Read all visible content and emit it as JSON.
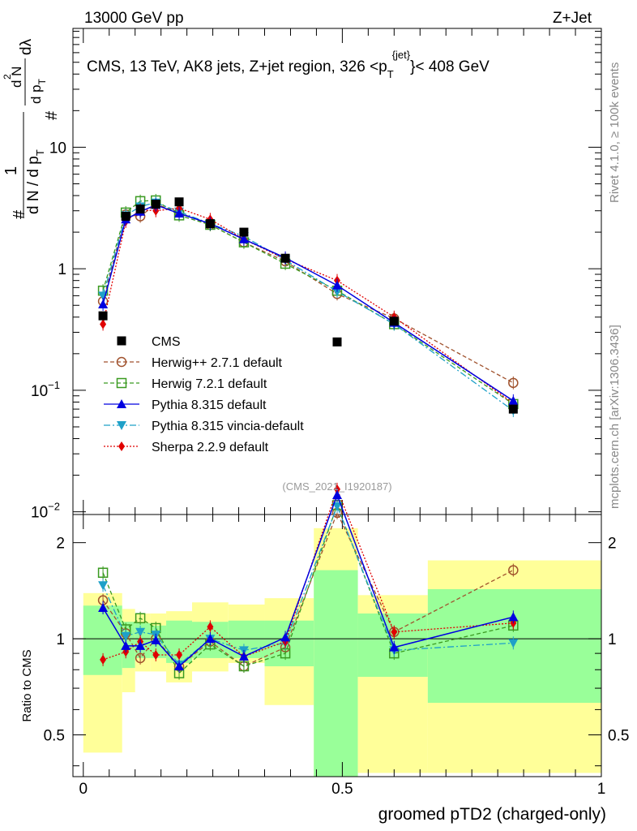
{
  "header": {
    "left": "13000 GeV pp",
    "right": "Z+Jet"
  },
  "plot_title": {
    "main": "CMS, 13 TeV, AK8 jets, Z+jet region, 326 <p",
    "sub": "T",
    "sup": "{jet}",
    "tail": "}< 408 GeV"
  },
  "side_labels": {
    "rivet": "Rivet 4.1.0, ≥ 100k events",
    "mcplots": "mcplots.cern.ch [arXiv:1306.3436]"
  },
  "watermark": "(CMS_2021_I1920187)",
  "ylabel_main": {
    "hash": "#",
    "one": "1",
    "den": "d N / d p",
    "den_sub": "T",
    "num_hash": "#",
    "num": "d N",
    "num_sup": "2",
    "num_den": "d p",
    "num_den_sub": "T",
    "dl": "dλ"
  },
  "ylabel_ratio": "Ratio to CMS",
  "xlabel": "groomed pTD2 (charged-only)",
  "main_ticks": [
    {
      "value": 10,
      "label": "10",
      "exp": ""
    },
    {
      "value": 1,
      "label": "1",
      "exp": ""
    },
    {
      "value": 0.1,
      "label": "10",
      "exp": "−1"
    },
    {
      "value": 0.01,
      "label": "10",
      "exp": "−2"
    }
  ],
  "ratio_ticks": [
    {
      "value": 2,
      "label": "2"
    },
    {
      "value": 1,
      "label": "1"
    },
    {
      "value": 0.5,
      "label": "0.5"
    }
  ],
  "x_ticks": [
    {
      "value": 0,
      "label": "0"
    },
    {
      "value": 0.5,
      "label": "0.5"
    },
    {
      "value": 1,
      "label": "1"
    }
  ],
  "colors": {
    "herwigpp": "#a0522d",
    "herwig7": "#3a9a20",
    "pythia": "#0000e0",
    "vincia": "#1ea0c8",
    "sherpa": "#e00000",
    "band_yellow": "#ffff99",
    "band_green": "#99ff99"
  },
  "chart_data": [
    {
      "type": "line",
      "panel": "main",
      "y_scale": "log",
      "xlim": [
        -0.02,
        1.0
      ],
      "ylim": [
        0.0095,
        95
      ],
      "x": [
        0.038,
        0.082,
        0.11,
        0.14,
        0.185,
        0.245,
        0.31,
        0.39,
        0.49,
        0.6,
        0.83
      ],
      "series": [
        {
          "name": "CMS",
          "key": "cms",
          "values": [
            0.41,
            2.7,
            3.1,
            3.4,
            3.55,
            2.35,
            2.0,
            1.22,
            0.25,
            0.37,
            0.07
          ]
        },
        {
          "name": "Herwig++ 2.7.1 default",
          "key": "herwigpp",
          "values": [
            0.54,
            2.8,
            2.7,
            3.4,
            2.9,
            2.3,
            1.65,
            1.15,
            0.62,
            0.39,
            0.115
          ]
        },
        {
          "name": "Herwig 7.2.1 default",
          "key": "herwig7",
          "values": [
            0.66,
            2.9,
            3.6,
            3.65,
            2.75,
            2.3,
            1.65,
            1.1,
            0.66,
            0.35,
            0.077
          ]
        },
        {
          "name": "Pythia 8.315 default",
          "key": "pythia",
          "values": [
            0.51,
            2.55,
            2.95,
            3.35,
            2.85,
            2.35,
            1.75,
            1.23,
            0.73,
            0.36,
            0.082
          ]
        },
        {
          "name": "Pythia 8.315 vincia-default",
          "key": "vincia",
          "values": [
            0.6,
            2.75,
            3.25,
            3.5,
            2.95,
            2.35,
            1.85,
            1.18,
            0.65,
            0.35,
            0.068
          ]
        },
        {
          "name": "Sherpa 2.2.9 default",
          "key": "sherpa",
          "values": [
            0.35,
            2.45,
            3.05,
            3.0,
            3.15,
            2.55,
            1.75,
            1.2,
            0.8,
            0.4,
            0.078
          ]
        }
      ]
    },
    {
      "type": "line",
      "panel": "ratio",
      "ylabel": "Ratio to CMS",
      "xlabel": "groomed pTD2 (charged-only)",
      "y_scale": "log",
      "xlim": [
        -0.02,
        1.0
      ],
      "ylim": [
        0.37,
        2.45
      ],
      "x": [
        0.038,
        0.082,
        0.11,
        0.14,
        0.185,
        0.245,
        0.31,
        0.39,
        0.49,
        0.6,
        0.83
      ],
      "bins": [
        {
          "lo": 0.0,
          "hi": 0.075,
          "yel": [
            0.44,
            1.39
          ],
          "grn": [
            0.77,
            1.27
          ]
        },
        {
          "lo": 0.075,
          "hi": 0.1,
          "yel": [
            0.68,
            1.24
          ],
          "grn": [
            0.81,
            1.13
          ]
        },
        {
          "lo": 0.1,
          "hi": 0.13,
          "yel": [
            0.79,
            1.2
          ],
          "grn": [
            0.87,
            1.12
          ]
        },
        {
          "lo": 0.13,
          "hi": 0.16,
          "yel": [
            0.79,
            1.2
          ],
          "grn": [
            0.87,
            1.1
          ]
        },
        {
          "lo": 0.16,
          "hi": 0.21,
          "yel": [
            0.73,
            1.22
          ],
          "grn": [
            0.84,
            1.14
          ]
        },
        {
          "lo": 0.21,
          "hi": 0.28,
          "yel": [
            0.79,
            1.3
          ],
          "grn": [
            0.87,
            1.13
          ]
        },
        {
          "lo": 0.28,
          "hi": 0.35,
          "yel": [
            0.84,
            1.28
          ],
          "grn": [
            0.87,
            1.14
          ]
        },
        {
          "lo": 0.35,
          "hi": 0.445,
          "yel": [
            0.62,
            1.34
          ],
          "grn": [
            0.82,
            1.14
          ]
        },
        {
          "lo": 0.445,
          "hi": 0.53,
          "yel": [
            0.35,
            2.22
          ],
          "grn": [
            0.35,
            1.64
          ]
        },
        {
          "lo": 0.53,
          "hi": 0.665,
          "yel": [
            0.38,
            1.37
          ],
          "grn": [
            0.76,
            1.2
          ]
        },
        {
          "lo": 0.665,
          "hi": 1.0,
          "yel": [
            0.38,
            1.76
          ],
          "grn": [
            0.63,
            1.43
          ]
        }
      ],
      "series": [
        {
          "name": "CMS",
          "key": "cms",
          "values": [
            1,
            1,
            1,
            1,
            1,
            1,
            1,
            1,
            1,
            1,
            1
          ]
        },
        {
          "name": "Herwig++ 2.7.1 default",
          "key": "herwigpp",
          "values": [
            1.32,
            1.04,
            0.87,
            1.0,
            0.82,
            0.98,
            0.82,
            0.94,
            2.48,
            1.05,
            1.64
          ]
        },
        {
          "name": "Herwig 7.2.1 default",
          "key": "herwig7",
          "values": [
            1.61,
            1.07,
            1.16,
            1.08,
            0.78,
            0.96,
            0.82,
            0.9,
            2.62,
            0.9,
            1.1
          ]
        },
        {
          "name": "Pythia 8.315 default",
          "key": "pythia",
          "values": [
            1.25,
            0.95,
            0.95,
            0.99,
            0.82,
            1.0,
            0.88,
            1.01,
            2.82,
            0.94,
            1.17
          ]
        },
        {
          "name": "Pythia 8.315 vincia-default",
          "key": "vincia",
          "values": [
            1.47,
            1.02,
            1.05,
            1.03,
            0.83,
            1.0,
            0.92,
            0.97,
            2.6,
            0.92,
            0.97
          ]
        },
        {
          "name": "Sherpa 2.2.9 default",
          "key": "sherpa",
          "values": [
            0.86,
            0.91,
            0.98,
            0.89,
            0.89,
            1.09,
            0.88,
            0.98,
            3.2,
            1.05,
            1.12
          ]
        }
      ]
    }
  ]
}
